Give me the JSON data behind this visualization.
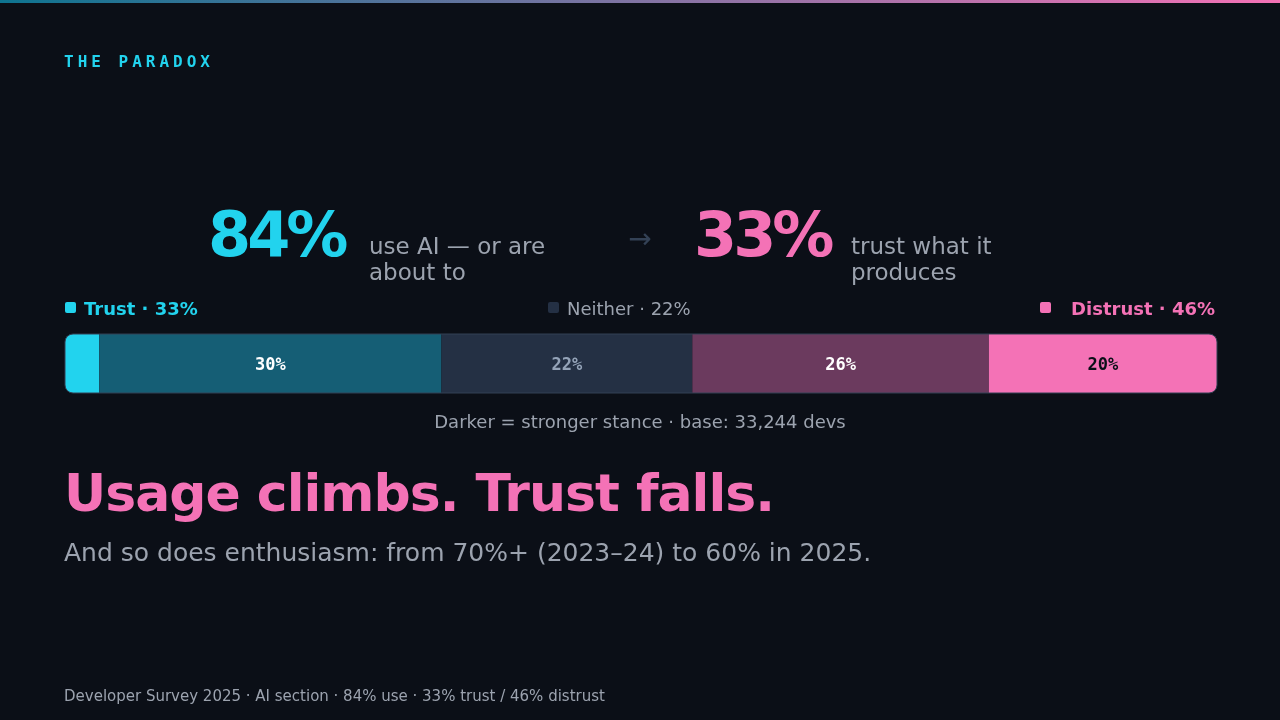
{
  "chart_data": {
    "type": "bar",
    "orientation": "horizontal",
    "stacked": true,
    "title": "Usage climbs. Trust falls.",
    "subtitle": "And so does enthusiasm: from 70%+ (2023–24) to 60% in 2025.",
    "categories": [
      null
    ],
    "series": [
      {
        "color": "#22d3ee",
        "values": [
          3
        ],
        "value_labels": [
          null
        ]
      },
      {
        "color": "#155e75",
        "values": [
          30
        ],
        "value_labels": [
          "30%"
        ]
      },
      {
        "color": "#243044",
        "values": [
          22
        ],
        "value_labels": [
          "22%"
        ]
      },
      {
        "color": "#6b3a5e",
        "values": [
          26
        ],
        "value_labels": [
          "26%"
        ]
      },
      {
        "color": "#f472b6",
        "values": [
          20
        ],
        "value_labels": [
          "20%"
        ]
      }
    ],
    "annotations": [
      "THE PARADOX",
      "84%",
      "use AI — or are about to",
      "→",
      "33%",
      "trust what it produces",
      "Trust · 33%",
      "Neither · 22%",
      "Distrust · 46%",
      "Darker = stronger stance · base: 33,244 devs",
      "Developer Survey 2025 · AI section · 84% use · 33% trust / 46% distrust"
    ]
  }
}
